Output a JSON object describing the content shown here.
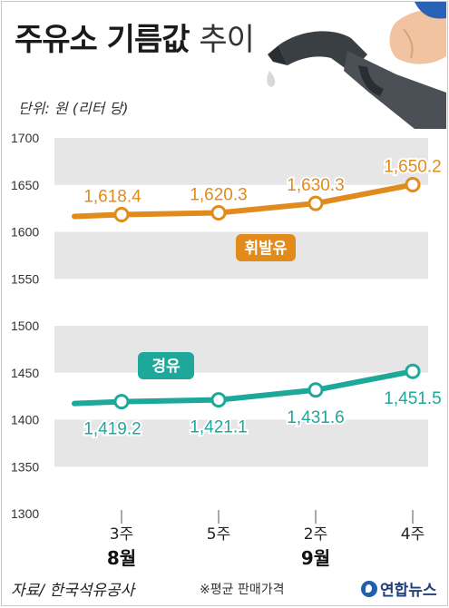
{
  "title_bold": "주유소 기름값",
  "title_light": "추이",
  "unit_label": "단위: 원 (리터 당)",
  "source": "자료/ 한국석유공사",
  "note": "※평균 판매가격",
  "logo_text": "연합뉴스",
  "colors": {
    "gasoline": "#e08b1c",
    "diesel": "#1ea89a",
    "band": "#e6e6e6",
    "text": "#222222"
  },
  "chart_data": {
    "type": "line",
    "x": [
      "3주",
      "5주",
      "2주",
      "4주"
    ],
    "x_groups": [
      {
        "label": "8월",
        "span": [
          0,
          1
        ]
      },
      {
        "label": "9월",
        "span": [
          2,
          3
        ]
      }
    ],
    "ylim": [
      1300,
      1700
    ],
    "yticks": [
      "1700",
      "1650",
      "1600",
      "1550",
      "1500",
      "1450",
      "1400",
      "1350",
      "1300"
    ],
    "series": [
      {
        "name": "휘발유",
        "values": [
          1618.4,
          1620.3,
          1630.3,
          1650.2
        ],
        "labels": [
          "1,618.4",
          "1,620.3",
          "1,630.3",
          "1,650.2"
        ]
      },
      {
        "name": "경유",
        "values": [
          1419.2,
          1421.1,
          1431.6,
          1451.5
        ],
        "labels": [
          "1,419.2",
          "1,421.1",
          "1,431.6",
          "1,451.5"
        ]
      }
    ]
  }
}
